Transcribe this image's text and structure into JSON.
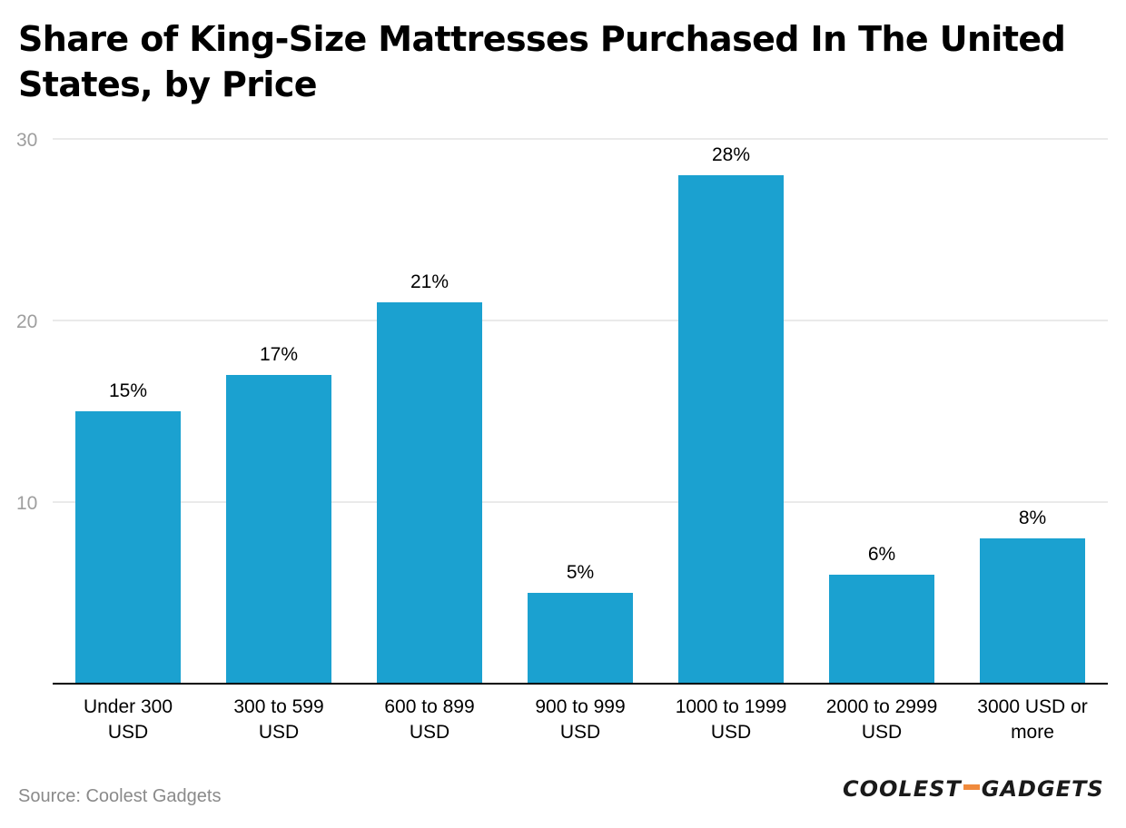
{
  "title": "Share of King-Size Mattresses Purchased In The United States, by Price",
  "source": "Source: Coolest Gadgets",
  "brand": {
    "left": "COOLEST",
    "right": "GADGETS",
    "accent_color": "#f08a3c"
  },
  "colors": {
    "bar": "#1ba1d0",
    "grid": "#e3e3e3",
    "axis": "#000000",
    "tick_text": "#9e9e9e",
    "label_text": "#000000"
  },
  "chart_data": {
    "type": "bar",
    "title": "Share of King-Size Mattresses Purchased In The United States, by Price",
    "categories": [
      [
        "Under 300",
        "USD"
      ],
      [
        "300 to 599",
        "USD"
      ],
      [
        "600 to 899",
        "USD"
      ],
      [
        "900 to 999",
        "USD"
      ],
      [
        "1000 to 1999",
        "USD"
      ],
      [
        "2000 to 2999",
        "USD"
      ],
      [
        "3000 USD or",
        "more"
      ]
    ],
    "values": [
      15,
      17,
      21,
      5,
      28,
      6,
      8
    ],
    "value_labels": [
      "15%",
      "17%",
      "21%",
      "5%",
      "28%",
      "6%",
      "8%"
    ],
    "xlabel": "",
    "ylabel": "",
    "ylim": [
      0,
      30
    ],
    "yticks": [
      10,
      20,
      30
    ],
    "grid": true,
    "legend": "none"
  }
}
